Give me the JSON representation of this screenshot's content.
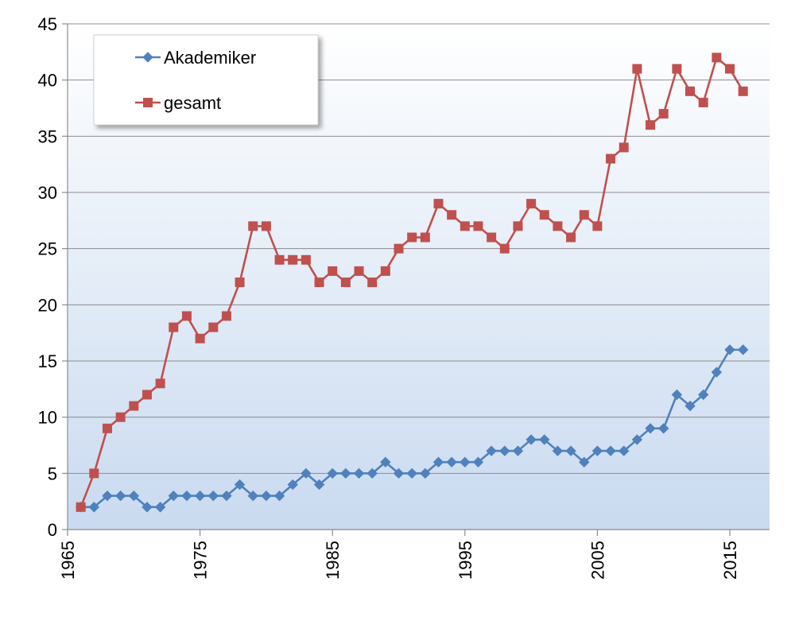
{
  "chart_data": {
    "type": "line",
    "x": [
      1966,
      1967,
      1968,
      1969,
      1970,
      1971,
      1972,
      1973,
      1974,
      1975,
      1976,
      1977,
      1978,
      1979,
      1980,
      1981,
      1982,
      1983,
      1984,
      1985,
      1986,
      1987,
      1988,
      1989,
      1990,
      1991,
      1992,
      1993,
      1994,
      1995,
      1996,
      1997,
      1998,
      1999,
      2000,
      2001,
      2002,
      2003,
      2004,
      2005,
      2006,
      2007,
      2008,
      2009,
      2010,
      2011,
      2012,
      2013,
      2014,
      2015,
      2016
    ],
    "series": [
      {
        "name": "Akademiker",
        "color": "#4f81bd",
        "marker": "diamond",
        "values": [
          2,
          2,
          3,
          3,
          3,
          2,
          2,
          3,
          3,
          3,
          3,
          3,
          4,
          3,
          3,
          3,
          4,
          5,
          4,
          5,
          5,
          5,
          5,
          6,
          5,
          5,
          5,
          6,
          6,
          6,
          6,
          7,
          7,
          7,
          8,
          8,
          7,
          7,
          6,
          7,
          7,
          7,
          8,
          9,
          9,
          12,
          11,
          12,
          14,
          16,
          16
        ]
      },
      {
        "name": "gesamt",
        "color": "#c0504d",
        "marker": "square",
        "values": [
          2,
          5,
          9,
          10,
          11,
          12,
          13,
          18,
          19,
          17,
          18,
          19,
          22,
          27,
          27,
          24,
          24,
          24,
          22,
          23,
          22,
          23,
          22,
          23,
          25,
          26,
          26,
          29,
          28,
          27,
          27,
          26,
          25,
          27,
          29,
          28,
          27,
          26,
          28,
          27,
          33,
          34,
          41,
          36,
          37,
          41,
          39,
          38,
          42,
          41,
          39
        ]
      }
    ],
    "xlim": [
      1965,
      2018
    ],
    "ylim": [
      0,
      45
    ],
    "x_ticks": [
      "1965",
      "1975",
      "1985",
      "1995",
      "2005",
      "2015"
    ],
    "y_ticks": [
      "0",
      "5",
      "10",
      "15",
      "20",
      "25",
      "30",
      "35",
      "40",
      "45"
    ],
    "grid": true,
    "legend_position": "top-left"
  }
}
